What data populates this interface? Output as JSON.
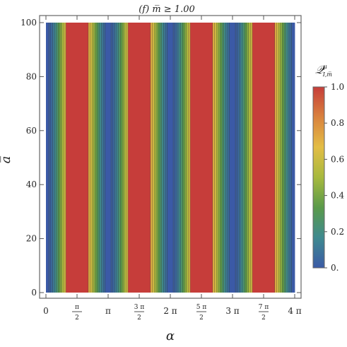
{
  "chart_data": {
    "type": "heatmap",
    "title": "(f)      m̅ ≥ 1.00",
    "xlabel": "α",
    "ylabel": "a̅",
    "xlim": [
      0,
      12.566
    ],
    "ylim": [
      0,
      100
    ],
    "x_ticks": [
      {
        "value": 0,
        "num": "0",
        "den": ""
      },
      {
        "value": 1.5708,
        "num": "π",
        "den": "2"
      },
      {
        "value": 3.1416,
        "num": "π",
        "den": ""
      },
      {
        "value": 4.7124,
        "num": "3 π",
        "den": "2"
      },
      {
        "value": 6.2832,
        "num": "2 π",
        "den": ""
      },
      {
        "value": 7.854,
        "num": "5 π",
        "den": "2"
      },
      {
        "value": 9.4248,
        "num": "3 π",
        "den": ""
      },
      {
        "value": 10.9956,
        "num": "7 π",
        "den": "2"
      },
      {
        "value": 12.5664,
        "num": "4 π",
        "den": ""
      }
    ],
    "y_ticks": [
      "0",
      "20",
      "40",
      "60",
      "80",
      "100"
    ],
    "y_tick_values": [
      0,
      20,
      40,
      60,
      80,
      100
    ],
    "colorbar": {
      "label": "𝒬",
      "label_sup": "μ",
      "label_sub": "I,m̅",
      "range": [
        0,
        1
      ],
      "ticks": [
        "0.",
        "0.2",
        "0.4",
        "0.6",
        "0.8",
        "1.0"
      ],
      "tick_values": [
        0,
        0.2,
        0.4,
        0.6,
        0.8,
        1.0
      ],
      "colors": [
        "#3b5aa6",
        "#3f8a8f",
        "#5a9a4a",
        "#a7b93e",
        "#e3bd45",
        "#d9823e",
        "#c63d3a"
      ]
    },
    "function": "sin^2(α)",
    "period": 3.1416,
    "bands": [
      {
        "alpha_min": 0.0,
        "alpha_max": 0.15,
        "value": 0.0
      },
      {
        "alpha_min": 0.15,
        "alpha_max": 1.0,
        "value": 0.5
      },
      {
        "alpha_min": 1.0,
        "alpha_max": 2.14,
        "value": 1.0
      },
      {
        "alpha_min": 2.14,
        "alpha_max": 2.99,
        "value": 0.5
      },
      {
        "alpha_min": 2.99,
        "alpha_max": 3.29,
        "value": 0.0
      },
      {
        "alpha_min": 3.29,
        "alpha_max": 4.14,
        "value": 0.5
      },
      {
        "alpha_min": 4.14,
        "alpha_max": 5.28,
        "value": 1.0
      },
      {
        "alpha_min": 5.28,
        "alpha_max": 6.13,
        "value": 0.5
      },
      {
        "alpha_min": 6.13,
        "alpha_max": 6.43,
        "value": 0.0
      },
      {
        "alpha_min": 6.43,
        "alpha_max": 7.28,
        "value": 0.5
      },
      {
        "alpha_min": 7.28,
        "alpha_max": 8.42,
        "value": 1.0
      },
      {
        "alpha_min": 8.42,
        "alpha_max": 9.27,
        "value": 0.5
      },
      {
        "alpha_min": 9.27,
        "alpha_max": 9.57,
        "value": 0.0
      },
      {
        "alpha_min": 9.57,
        "alpha_max": 10.42,
        "value": 0.5
      },
      {
        "alpha_min": 10.42,
        "alpha_max": 11.56,
        "value": 1.0
      },
      {
        "alpha_min": 11.56,
        "alpha_max": 12.41,
        "value": 0.5
      },
      {
        "alpha_min": 12.41,
        "alpha_max": 12.566,
        "value": 0.0
      }
    ],
    "grid": false
  }
}
